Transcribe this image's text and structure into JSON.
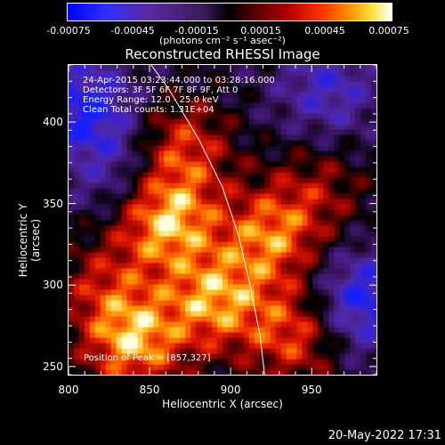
{
  "colorbar": {
    "ticks": [
      "-0.00075",
      "-0.00045",
      "-0.00015",
      "0.00015",
      "0.00045",
      "0.00075"
    ],
    "units": "(photons cm⁻² s⁻¹ asec⁻²)"
  },
  "chart_data": {
    "type": "heatmap",
    "title": "Reconstructed RHESSI Image",
    "xlabel": "Heliocentric X (arcsec)",
    "ylabel": "Heliocentric Y (arcsec)",
    "xlim": [
      800,
      990
    ],
    "ylim": [
      245,
      435
    ],
    "x_ticks": [
      "800",
      "850",
      "900",
      "950"
    ],
    "y_ticks": [
      "250",
      "300",
      "350",
      "400"
    ],
    "clim": [
      -0.00075,
      0.00075
    ],
    "annotations": [
      "24-Apr-2015 03:23:44.000 to 03:28:16.000",
      "Detectors: 3F 5F 6F 7F 8F 9F, Att 0",
      "Energy Range: 12.0 - 25.0 keV",
      "Clean     Total counts: 1.31E+04"
    ],
    "peak_label": "Position of Peak = [857,327]",
    "peak_position": [
      857,
      327
    ],
    "limb_points": [
      [
        851,
        435
      ],
      [
        862,
        420
      ],
      [
        880,
        390
      ],
      [
        895,
        360
      ],
      [
        905,
        330
      ],
      [
        912,
        300
      ],
      [
        918,
        270
      ],
      [
        921,
        245
      ]
    ],
    "emission_sources": [
      {
        "x": 860,
        "y": 340,
        "strength": 0.00075
      },
      {
        "x": 840,
        "y": 265,
        "strength": 0.0007
      },
      {
        "x": 890,
        "y": 290,
        "strength": 0.00065
      },
      {
        "x": 925,
        "y": 330,
        "strength": 0.0006
      },
      {
        "x": 870,
        "y": 385,
        "strength": 0.0005
      },
      {
        "x": 940,
        "y": 270,
        "strength": 0.00055
      },
      {
        "x": 820,
        "y": 300,
        "strength": 0.00035
      },
      {
        "x": 955,
        "y": 360,
        "strength": 0.0003
      },
      {
        "x": 810,
        "y": 410,
        "strength": -0.00055
      },
      {
        "x": 980,
        "y": 290,
        "strength": -0.0006
      },
      {
        "x": 960,
        "y": 420,
        "strength": -0.0004
      },
      {
        "x": 830,
        "y": 370,
        "strength": -0.0003
      }
    ]
  },
  "timestamp": "20-May-2022 17:31"
}
